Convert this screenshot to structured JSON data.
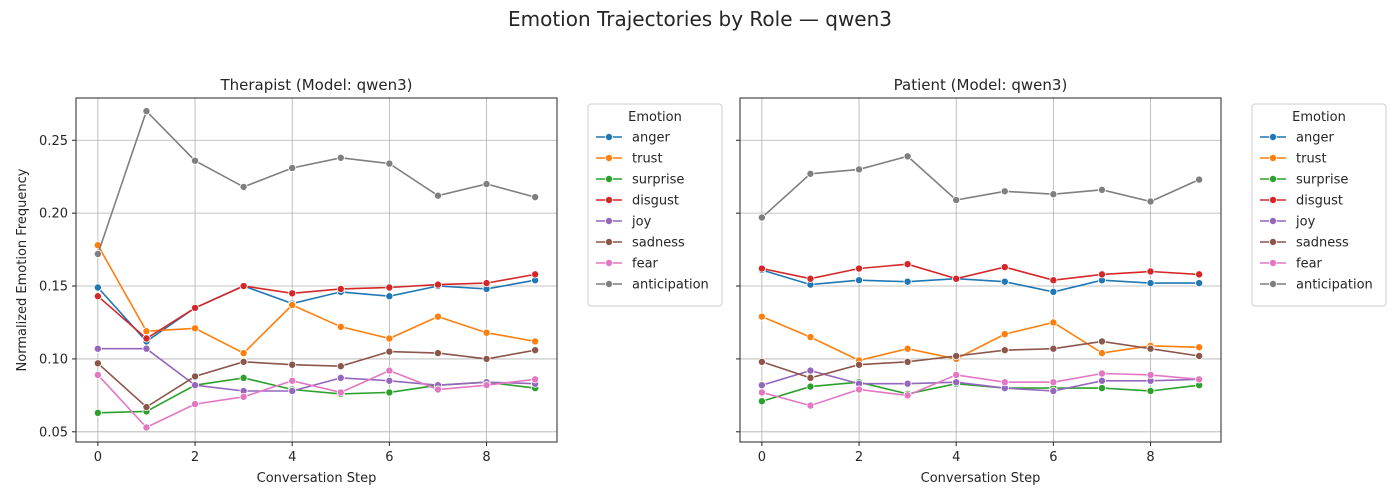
{
  "figure": {
    "suptitle": "Emotion Trajectories by Role — qwen3"
  },
  "colors": {
    "anger": "#1f77b4",
    "trust": "#ff7f0e",
    "surprise": "#2ca02c",
    "disgust": "#d62728",
    "joy": "#9467bd",
    "sadness": "#8c564b",
    "fear": "#e377c2",
    "anticipation": "#7f7f7f"
  },
  "chart_data": [
    {
      "type": "line",
      "title": "Therapist (Model: qwen3)",
      "xlabel": "Conversation Step",
      "ylabel": "Normalized Emotion Frequency",
      "x": [
        0,
        1,
        2,
        3,
        4,
        5,
        6,
        7,
        8,
        9
      ],
      "xlim": [
        -0.45,
        9.45
      ],
      "ylim": [
        0.043,
        0.279
      ],
      "xticks": [
        0,
        2,
        4,
        6,
        8
      ],
      "yticks": [
        0.05,
        0.1,
        0.15,
        0.2,
        0.25
      ],
      "ytick_labels": [
        "0.05",
        "0.10",
        "0.15",
        "0.20",
        "0.25"
      ],
      "grid": true,
      "legend_title": "Emotion",
      "legend_position": "outside-right",
      "series": [
        {
          "name": "anger",
          "values": [
            0.149,
            0.112,
            0.135,
            0.15,
            0.138,
            0.146,
            0.143,
            0.15,
            0.148,
            0.154
          ]
        },
        {
          "name": "trust",
          "values": [
            0.178,
            0.119,
            0.121,
            0.104,
            0.137,
            0.122,
            0.114,
            0.129,
            0.118,
            0.112
          ]
        },
        {
          "name": "surprise",
          "values": [
            0.063,
            0.064,
            0.082,
            0.087,
            0.079,
            0.076,
            0.077,
            0.082,
            0.084,
            0.08
          ]
        },
        {
          "name": "disgust",
          "values": [
            0.143,
            0.114,
            0.135,
            0.15,
            0.145,
            0.148,
            0.149,
            0.151,
            0.152,
            0.158
          ]
        },
        {
          "name": "joy",
          "values": [
            0.107,
            0.107,
            0.082,
            0.078,
            0.078,
            0.087,
            0.085,
            0.082,
            0.084,
            0.083
          ]
        },
        {
          "name": "sadness",
          "values": [
            0.097,
            0.067,
            0.088,
            0.098,
            0.096,
            0.095,
            0.105,
            0.104,
            0.1,
            0.106
          ]
        },
        {
          "name": "fear",
          "values": [
            0.089,
            0.053,
            0.069,
            0.074,
            0.085,
            0.077,
            0.092,
            0.079,
            0.082,
            0.086
          ]
        },
        {
          "name": "anticipation",
          "values": [
            0.172,
            0.27,
            0.236,
            0.218,
            0.231,
            0.238,
            0.234,
            0.212,
            0.22,
            0.211
          ]
        }
      ]
    },
    {
      "type": "line",
      "title": "Patient (Model: qwen3)",
      "xlabel": "Conversation Step",
      "ylabel": "",
      "x": [
        0,
        1,
        2,
        3,
        4,
        5,
        6,
        7,
        8,
        9
      ],
      "xlim": [
        -0.45,
        9.45
      ],
      "ylim": [
        0.043,
        0.279
      ],
      "xticks": [
        0,
        2,
        4,
        6,
        8
      ],
      "yticks": [
        0.05,
        0.1,
        0.15,
        0.2,
        0.25
      ],
      "ytick_labels": [
        "",
        "",
        "",
        "",
        ""
      ],
      "grid": true,
      "legend_title": "Emotion",
      "legend_position": "outside-right",
      "series": [
        {
          "name": "anger",
          "values": [
            0.161,
            0.151,
            0.154,
            0.153,
            0.155,
            0.153,
            0.146,
            0.154,
            0.152,
            0.152
          ]
        },
        {
          "name": "trust",
          "values": [
            0.129,
            0.115,
            0.099,
            0.107,
            0.1,
            0.117,
            0.125,
            0.104,
            0.109,
            0.108
          ]
        },
        {
          "name": "surprise",
          "values": [
            0.071,
            0.081,
            0.084,
            0.076,
            0.083,
            0.08,
            0.08,
            0.08,
            0.078,
            0.082
          ]
        },
        {
          "name": "disgust",
          "values": [
            0.162,
            0.155,
            0.162,
            0.165,
            0.155,
            0.163,
            0.154,
            0.158,
            0.16,
            0.158
          ]
        },
        {
          "name": "joy",
          "values": [
            0.082,
            0.092,
            0.083,
            0.083,
            0.084,
            0.08,
            0.078,
            0.085,
            0.085,
            0.086
          ]
        },
        {
          "name": "sadness",
          "values": [
            0.098,
            0.087,
            0.096,
            0.098,
            0.102,
            0.106,
            0.107,
            0.112,
            0.107,
            0.102
          ]
        },
        {
          "name": "fear",
          "values": [
            0.077,
            0.068,
            0.079,
            0.075,
            0.089,
            0.084,
            0.084,
            0.09,
            0.089,
            0.086
          ]
        },
        {
          "name": "anticipation",
          "values": [
            0.197,
            0.227,
            0.23,
            0.239,
            0.209,
            0.215,
            0.213,
            0.216,
            0.208,
            0.223
          ]
        }
      ]
    }
  ]
}
